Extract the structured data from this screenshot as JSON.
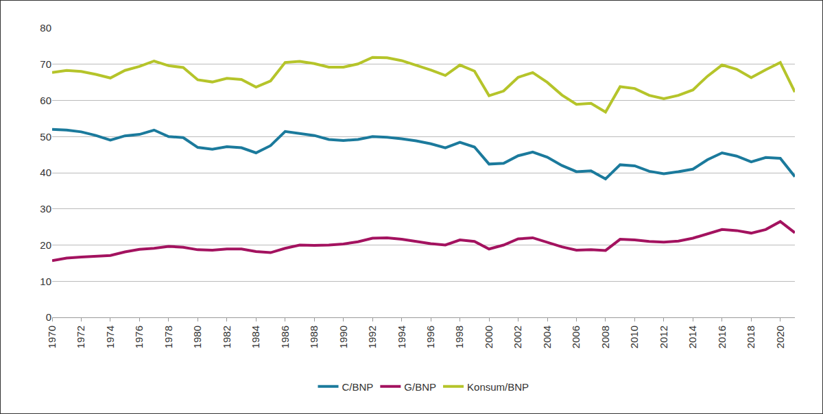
{
  "chart_data": {
    "type": "line",
    "x": [
      1970,
      1971,
      1972,
      1973,
      1974,
      1975,
      1976,
      1977,
      1978,
      1979,
      1980,
      1981,
      1982,
      1983,
      1984,
      1985,
      1986,
      1987,
      1988,
      1989,
      1990,
      1991,
      1992,
      1993,
      1994,
      1995,
      1996,
      1997,
      1998,
      1999,
      2000,
      2001,
      2002,
      2003,
      2004,
      2005,
      2006,
      2007,
      2008,
      2009,
      2010,
      2011,
      2012,
      2013,
      2014,
      2015,
      2016,
      2017,
      2018,
      2019,
      2020,
      2021
    ],
    "series": [
      {
        "name": "C/BNP",
        "color": "#1b7a9c",
        "values": [
          52,
          51.8,
          51.3,
          50.3,
          49,
          50.2,
          50.6,
          51.8,
          50,
          49.7,
          47,
          46.5,
          47.2,
          46.9,
          45.5,
          47.5,
          51.4,
          50.8,
          50.3,
          49.2,
          48.9,
          49.2,
          50,
          49.8,
          49.4,
          48.8,
          48,
          46.9,
          48.4,
          47.1,
          42.4,
          42.6,
          44.7,
          45.7,
          44.3,
          42,
          40.3,
          40.5,
          38.3,
          42.2,
          41.9,
          40.4,
          39.7,
          40.3,
          41,
          43.6,
          45.5,
          44.6,
          43,
          44.2,
          44,
          38.9
        ]
      },
      {
        "name": "G/BNP",
        "color": "#a3125f",
        "values": [
          15.7,
          16.4,
          16.7,
          16.9,
          17.1,
          18.1,
          18.8,
          19.1,
          19.6,
          19.4,
          18.7,
          18.6,
          18.9,
          18.9,
          18.2,
          17.9,
          19.1,
          20,
          19.9,
          20,
          20.3,
          20.9,
          21.9,
          22,
          21.6,
          21,
          20.4,
          20,
          21.4,
          21,
          18.9,
          20,
          21.7,
          22,
          20.7,
          19.5,
          18.6,
          18.7,
          18.5,
          21.6,
          21.4,
          21,
          20.8,
          21.1,
          21.9,
          23.1,
          24.3,
          24,
          23.3,
          24.3,
          26.5,
          23.4
        ]
      },
      {
        "name": "Konsum/BNP",
        "color": "#b5c42a",
        "values": [
          67.7,
          68.3,
          68,
          67.2,
          66.2,
          68.3,
          69.4,
          70.9,
          69.6,
          69.1,
          65.7,
          65.1,
          66.1,
          65.8,
          63.7,
          65.4,
          70.5,
          70.8,
          70.2,
          69.2,
          69.2,
          70.1,
          71.9,
          71.8,
          71,
          69.8,
          68.4,
          66.9,
          69.8,
          68.1,
          61.3,
          62.6,
          66.4,
          67.7,
          65,
          61.5,
          58.9,
          59.2,
          56.8,
          63.8,
          63.3,
          61.4,
          60.5,
          61.4,
          62.9,
          66.7,
          69.8,
          68.6,
          66.3,
          68.5,
          70.5,
          62.3
        ]
      }
    ],
    "xlim": [
      1970,
      2021
    ],
    "xticks": [
      1970,
      1972,
      1974,
      1976,
      1978,
      1980,
      1982,
      1984,
      1986,
      1988,
      1990,
      1992,
      1994,
      1996,
      1998,
      2000,
      2002,
      2004,
      2006,
      2008,
      2010,
      2012,
      2014,
      2016,
      2018,
      2020
    ],
    "ylim": [
      0,
      80
    ],
    "yticks": [
      0,
      10,
      20,
      30,
      40,
      50,
      60,
      70,
      80
    ],
    "grid": true,
    "legend": "bottom"
  }
}
